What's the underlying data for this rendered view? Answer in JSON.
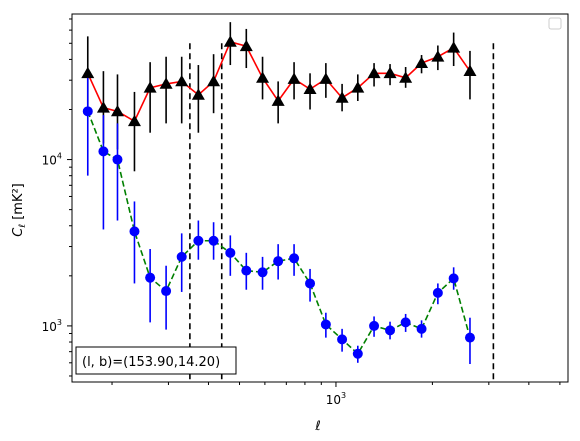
{
  "chart_data": {
    "type": "scatter",
    "xscale": "log",
    "yscale": "log",
    "xlim": [
      150,
      5300
    ],
    "ylim": [
      460,
      75000
    ],
    "xlabel": "ℓ",
    "ylabel_main": "C",
    "ylabel_sub": "ℓ",
    "ylabel_unit": "[mK²]",
    "x_tick_label": "10",
    "x_tick_exp": "3",
    "y_tick_labels": [
      {
        "value": 1000,
        "base": "10",
        "exp": "3"
      },
      {
        "value": 10000,
        "base": "10",
        "exp": "4"
      }
    ],
    "annotation": "(l, b)=(153.90,14.20)",
    "vlines": [
      350,
      440,
      3100
    ],
    "series": [
      {
        "marker": "triangle",
        "marker_color": "#000000",
        "line_color": "#ff0000",
        "line_style": "solid",
        "errorbar_color": "#000000",
        "points": [
          {
            "x": 168,
            "y": 33000,
            "lo": 19000,
            "hi": 55000
          },
          {
            "x": 188,
            "y": 20500,
            "lo": 12500,
            "hi": 34000
          },
          {
            "x": 208,
            "y": 19500,
            "lo": 11500,
            "hi": 32500
          },
          {
            "x": 235,
            "y": 17000,
            "lo": 8500,
            "hi": 25500
          },
          {
            "x": 263,
            "y": 27000,
            "lo": 14500,
            "hi": 38500
          },
          {
            "x": 295,
            "y": 28500,
            "lo": 16500,
            "hi": 41500
          },
          {
            "x": 330,
            "y": 29500,
            "lo": 16500,
            "hi": 41500
          },
          {
            "x": 372,
            "y": 24500,
            "lo": 14500,
            "hi": 37000
          },
          {
            "x": 415,
            "y": 29500,
            "lo": 19000,
            "hi": 43000
          },
          {
            "x": 468,
            "y": 51000,
            "lo": 37000,
            "hi": 67000
          },
          {
            "x": 525,
            "y": 48000,
            "lo": 35500,
            "hi": 61000
          },
          {
            "x": 590,
            "y": 31000,
            "lo": 23000,
            "hi": 41500
          },
          {
            "x": 660,
            "y": 22500,
            "lo": 16500,
            "hi": 29500
          },
          {
            "x": 740,
            "y": 30500,
            "lo": 23000,
            "hi": 38500
          },
          {
            "x": 830,
            "y": 26500,
            "lo": 20000,
            "hi": 33000
          },
          {
            "x": 930,
            "y": 30500,
            "lo": 23500,
            "hi": 38000
          },
          {
            "x": 1045,
            "y": 23500,
            "lo": 19500,
            "hi": 28500
          },
          {
            "x": 1170,
            "y": 27000,
            "lo": 22500,
            "hi": 32500
          },
          {
            "x": 1315,
            "y": 33000,
            "lo": 27500,
            "hi": 38000
          },
          {
            "x": 1475,
            "y": 33000,
            "lo": 28000,
            "hi": 37500
          },
          {
            "x": 1650,
            "y": 31000,
            "lo": 27000,
            "hi": 36000
          },
          {
            "x": 1850,
            "y": 38000,
            "lo": 33000,
            "hi": 42500
          },
          {
            "x": 2080,
            "y": 41500,
            "lo": 34500,
            "hi": 48500
          },
          {
            "x": 2330,
            "y": 47000,
            "lo": 36500,
            "hi": 58000
          },
          {
            "x": 2620,
            "y": 34000,
            "lo": 23000,
            "hi": 45000
          }
        ]
      },
      {
        "marker": "circle",
        "marker_color": "#0000ff",
        "line_color": "#008000",
        "line_style": "dashed",
        "errorbar_color": "#0000ff",
        "points": [
          {
            "x": 168,
            "y": 19500,
            "lo": 8000,
            "hi": 31000
          },
          {
            "x": 188,
            "y": 11200,
            "lo": 3800,
            "hi": 18500
          },
          {
            "x": 208,
            "y": 10000,
            "lo": 4300,
            "hi": 16500
          },
          {
            "x": 235,
            "y": 3700,
            "lo": 1800,
            "hi": 5600
          },
          {
            "x": 263,
            "y": 1950,
            "lo": 1050,
            "hi": 2900
          },
          {
            "x": 295,
            "y": 1620,
            "lo": 950,
            "hi": 2300
          },
          {
            "x": 330,
            "y": 2600,
            "lo": 1600,
            "hi": 3600
          },
          {
            "x": 372,
            "y": 3250,
            "lo": 2500,
            "hi": 4300
          },
          {
            "x": 415,
            "y": 3250,
            "lo": 2500,
            "hi": 4200
          },
          {
            "x": 468,
            "y": 2750,
            "lo": 2000,
            "hi": 3500
          },
          {
            "x": 525,
            "y": 2150,
            "lo": 1650,
            "hi": 2750
          },
          {
            "x": 590,
            "y": 2100,
            "lo": 1650,
            "hi": 2600
          },
          {
            "x": 660,
            "y": 2450,
            "lo": 1900,
            "hi": 3100
          },
          {
            "x": 740,
            "y": 2550,
            "lo": 2000,
            "hi": 3100
          },
          {
            "x": 830,
            "y": 1800,
            "lo": 1400,
            "hi": 2200
          },
          {
            "x": 930,
            "y": 1020,
            "lo": 850,
            "hi": 1200
          },
          {
            "x": 1045,
            "y": 830,
            "lo": 700,
            "hi": 960
          },
          {
            "x": 1170,
            "y": 680,
            "lo": 600,
            "hi": 760
          },
          {
            "x": 1315,
            "y": 1000,
            "lo": 860,
            "hi": 1140
          },
          {
            "x": 1475,
            "y": 940,
            "lo": 830,
            "hi": 1060
          },
          {
            "x": 1650,
            "y": 1050,
            "lo": 920,
            "hi": 1180
          },
          {
            "x": 1850,
            "y": 960,
            "lo": 850,
            "hi": 1080
          },
          {
            "x": 2080,
            "y": 1580,
            "lo": 1350,
            "hi": 1800
          },
          {
            "x": 2330,
            "y": 1930,
            "lo": 1650,
            "hi": 2250
          },
          {
            "x": 2620,
            "y": 850,
            "lo": 590,
            "hi": 1120
          }
        ]
      }
    ]
  }
}
